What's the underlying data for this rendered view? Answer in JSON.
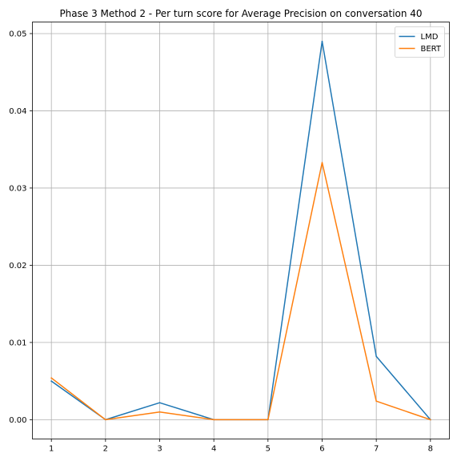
{
  "chart_data": {
    "type": "line",
    "title": "Phase 3 Method 2 - Per turn score for Average Precision on conversation 40",
    "xlabel": "",
    "ylabel": "",
    "x": [
      1,
      2,
      3,
      4,
      5,
      6,
      7,
      8
    ],
    "xticks": [
      "1",
      "2",
      "3",
      "4",
      "5",
      "6",
      "7",
      "8"
    ],
    "yticks": [
      "0.00",
      "0.01",
      "0.02",
      "0.03",
      "0.04",
      "0.05"
    ],
    "xlim": [
      0.65,
      8.35
    ],
    "ylim": [
      -0.0025,
      0.0515
    ],
    "grid": true,
    "legend_position": "top-right",
    "series": [
      {
        "name": "LMD",
        "color": "#1f77b4",
        "values": [
          0.005,
          0.0,
          0.0022,
          0.0,
          0.0,
          0.049,
          0.0082,
          0.0
        ]
      },
      {
        "name": "BERT",
        "color": "#ff7f0e",
        "values": [
          0.0054,
          0.0,
          0.001,
          0.0,
          0.0,
          0.0333,
          0.0024,
          0.0
        ]
      }
    ]
  }
}
